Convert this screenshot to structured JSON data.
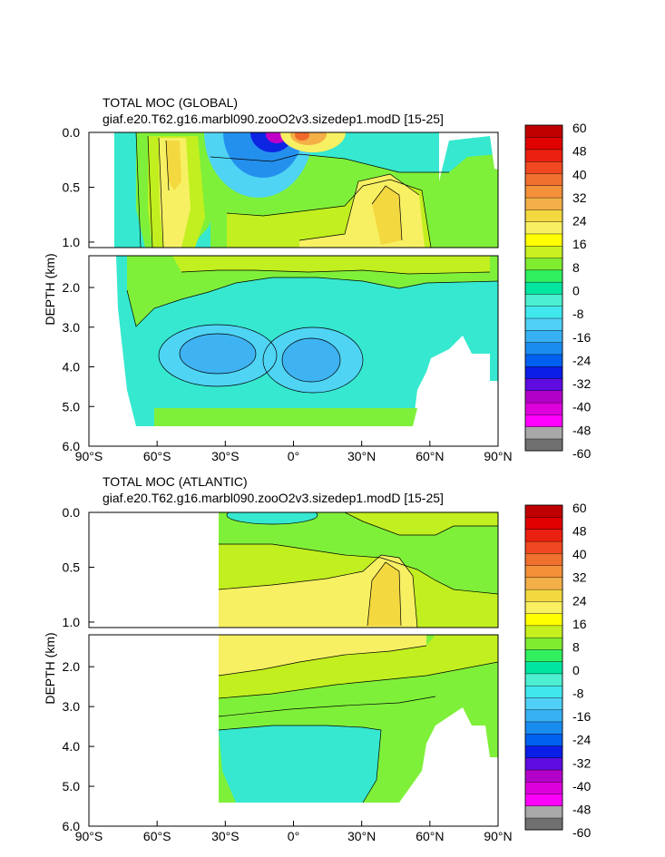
{
  "chart_data": [
    {
      "type": "heatmap",
      "title": "TOTAL MOC (GLOBAL)",
      "subtitle": "giaf.e20.T62.g16.marbl090.zooO2v3.sizedep1.modD [15-25]",
      "ylabel": "DEPTH (km)",
      "xlabel": "",
      "x_ticks": [
        "90°S",
        "60°S",
        "30°S",
        "0°",
        "30°N",
        "60°N",
        "90°N"
      ],
      "y_ticks_upper": [
        "0.0",
        "0.5",
        "1.0"
      ],
      "y_ticks_lower": [
        "2.0",
        "3.0",
        "4.0",
        "5.0",
        "6.0"
      ],
      "xlim": [
        -90,
        90
      ],
      "ylim_upper": [
        0,
        1.05
      ],
      "ylim_lower": [
        1.2,
        6.0
      ],
      "data_extent": {
        "lat_min": -78,
        "lat_max": 90
      },
      "colorbar": {
        "labels": [
          "60",
          "48",
          "40",
          "32",
          "24",
          "16",
          "8",
          "0",
          "-8",
          "-16",
          "-24",
          "-32",
          "-40",
          "-48",
          "-60"
        ],
        "range": [
          -60,
          60
        ]
      },
      "features": [
        {
          "desc": "strong negative cell near surface",
          "lat": -10,
          "depth": 0.05,
          "value": -55
        },
        {
          "desc": "positive cell near surface",
          "lat": 8,
          "depth": 0.05,
          "value": 24
        },
        {
          "desc": "positive cell",
          "lat": -47,
          "depth": 0.4,
          "value": 18
        },
        {
          "desc": "deep positive maximum",
          "lat": 40,
          "depth": 0.9,
          "value": 18
        },
        {
          "desc": "abyssal negative cell",
          "lat": -35,
          "depth": 3.7,
          "value": -14
        },
        {
          "desc": "abyssal negative cell",
          "lat": 0,
          "depth": 3.8,
          "value": -14
        }
      ]
    },
    {
      "type": "heatmap",
      "title": "TOTAL MOC (ATLANTIC)",
      "subtitle": "giaf.e20.T62.g16.marbl090.zooO2v3.sizedep1.modD [15-25]",
      "ylabel": "DEPTH (km)",
      "xlabel": "",
      "x_ticks": [
        "90°S",
        "60°S",
        "30°S",
        "0°",
        "30°N",
        "60°N",
        "90°N"
      ],
      "y_ticks_upper": [
        "0.0",
        "0.5",
        "1.0"
      ],
      "y_ticks_lower": [
        "2.0",
        "3.0",
        "4.0",
        "5.0",
        "6.0"
      ],
      "xlim": [
        -90,
        90
      ],
      "ylim_upper": [
        0,
        1.05
      ],
      "ylim_lower": [
        1.2,
        6.0
      ],
      "data_extent": {
        "lat_min": -34,
        "lat_max": 90
      },
      "colorbar": {
        "labels": [
          "60",
          "48",
          "40",
          "32",
          "24",
          "16",
          "8",
          "0",
          "-8",
          "-16",
          "-24",
          "-32",
          "-40",
          "-48",
          "-60"
        ],
        "range": [
          -60,
          60
        ]
      },
      "features": [
        {
          "desc": "weak negative near surface",
          "lat": -10,
          "depth": 0.03,
          "value": -8
        },
        {
          "desc": "upper overturning cell maximum",
          "lat": 40,
          "depth": 0.9,
          "value": 18
        },
        {
          "desc": "upper overturning cell",
          "lat": 10,
          "depth": 1.5,
          "value": 16
        },
        {
          "desc": "abyssal negative cell",
          "lat": -10,
          "depth": 4.5,
          "value": -5
        }
      ]
    }
  ],
  "colors": {
    "palette": [
      "#707070",
      "#a8a8a8",
      "#ff00ff",
      "#dd00dd",
      "#b100c8",
      "#5e0ce0",
      "#0a1ee8",
      "#0060f0",
      "#1a8cf0",
      "#38b0f4",
      "#50d0f6",
      "#40e8ee",
      "#4cf0d0",
      "#00e6a0",
      "#30f060",
      "#80ec30",
      "#c8f020",
      "#ffff00",
      "#f8f060",
      "#f4d840",
      "#f4b048",
      "#f49038",
      "#f07030",
      "#f04820",
      "#ec2010",
      "#e00000",
      "#c00000"
    ]
  }
}
